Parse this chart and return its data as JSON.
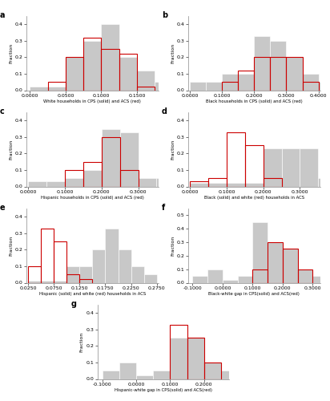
{
  "panels": [
    {
      "label": "a",
      "title": "White households in CPS (solid) and ACS (red)",
      "gray_bins": [
        0.0,
        0.025,
        0.05,
        0.075,
        0.1,
        0.125,
        0.15,
        0.175
      ],
      "gray_heights": [
        0.02,
        0.02,
        0.2,
        0.3,
        0.4,
        0.2,
        0.12,
        0.05
      ],
      "red_bins": [
        0.0,
        0.025,
        0.05,
        0.075,
        0.1,
        0.125,
        0.15,
        0.175
      ],
      "red_heights": [
        0.0,
        0.05,
        0.2,
        0.32,
        0.25,
        0.22,
        0.02,
        0.0
      ],
      "xlim": [
        -0.005,
        0.18
      ],
      "ylim": [
        0,
        0.45
      ],
      "xticks": [
        0.0,
        0.05,
        0.1,
        0.15
      ],
      "yticks": [
        0.0,
        0.1,
        0.2,
        0.3,
        0.4
      ]
    },
    {
      "label": "b",
      "title": "Black households in CPS (solid) and ACS (red)",
      "gray_bins": [
        0.0,
        0.05,
        0.1,
        0.15,
        0.2,
        0.25,
        0.3,
        0.35,
        0.4
      ],
      "gray_heights": [
        0.05,
        0.05,
        0.1,
        0.1,
        0.33,
        0.3,
        0.2,
        0.1,
        0.05
      ],
      "red_bins": [
        0.0,
        0.05,
        0.1,
        0.15,
        0.2,
        0.25,
        0.3,
        0.35,
        0.4
      ],
      "red_heights": [
        0.0,
        0.0,
        0.05,
        0.12,
        0.2,
        0.2,
        0.2,
        0.05,
        0.0
      ],
      "xlim": [
        -0.005,
        0.405
      ],
      "ylim": [
        0,
        0.45
      ],
      "xticks": [
        0.0,
        0.1,
        0.2,
        0.3,
        0.4
      ],
      "yticks": [
        0.0,
        0.1,
        0.2,
        0.3,
        0.4
      ]
    },
    {
      "label": "c",
      "title": "Hispanic households in CPS (solid) and ACS (red)",
      "gray_bins": [
        0.0,
        0.05,
        0.1,
        0.15,
        0.2,
        0.25,
        0.3,
        0.35
      ],
      "gray_heights": [
        0.03,
        0.03,
        0.05,
        0.1,
        0.35,
        0.33,
        0.05,
        0.05
      ],
      "red_bins": [
        0.0,
        0.05,
        0.1,
        0.15,
        0.2,
        0.25,
        0.3,
        0.35
      ],
      "red_heights": [
        0.0,
        0.0,
        0.1,
        0.15,
        0.3,
        0.1,
        0.0,
        0.0
      ],
      "xlim": [
        -0.005,
        0.355
      ],
      "ylim": [
        0,
        0.45
      ],
      "xticks": [
        0.0,
        0.1,
        0.2,
        0.3
      ],
      "yticks": [
        0.0,
        0.1,
        0.2,
        0.3,
        0.4
      ]
    },
    {
      "label": "d",
      "title": "Black (solid) and white (red) households in ACS",
      "gray_bins": [
        0.0,
        0.05,
        0.1,
        0.15,
        0.2,
        0.25,
        0.3,
        0.35
      ],
      "gray_heights": [
        0.02,
        0.02,
        0.02,
        0.02,
        0.23,
        0.23,
        0.23,
        0.05
      ],
      "red_bins": [
        0.0,
        0.05,
        0.1,
        0.15,
        0.2,
        0.25,
        0.3,
        0.35
      ],
      "red_heights": [
        0.03,
        0.05,
        0.33,
        0.25,
        0.05,
        0.0,
        0.0,
        0.0
      ],
      "xlim": [
        -0.005,
        0.355
      ],
      "ylim": [
        0,
        0.45
      ],
      "xticks": [
        0.0,
        0.1,
        0.2,
        0.3
      ],
      "yticks": [
        0.0,
        0.1,
        0.2,
        0.3,
        0.4
      ]
    },
    {
      "label": "e",
      "title": "Hispanic (solid) and white (red) households in ACS",
      "gray_bins": [
        0.025,
        0.05,
        0.075,
        0.1,
        0.125,
        0.15,
        0.175,
        0.2,
        0.225,
        0.25
      ],
      "gray_heights": [
        0.01,
        0.01,
        0.01,
        0.1,
        0.1,
        0.2,
        0.33,
        0.2,
        0.1,
        0.05
      ],
      "red_bins": [
        0.025,
        0.05,
        0.075,
        0.1,
        0.125,
        0.15,
        0.175,
        0.2,
        0.225,
        0.25
      ],
      "red_heights": [
        0.1,
        0.33,
        0.25,
        0.05,
        0.02,
        0.0,
        0.0,
        0.0,
        0.0,
        0.0
      ],
      "xlim": [
        0.022,
        0.278
      ],
      "ylim": [
        0,
        0.45
      ],
      "xticks": [
        0.025,
        0.075,
        0.125,
        0.175,
        0.225,
        0.275
      ],
      "xtick_labels": [
        "0.0250",
        "0.0750",
        "0.1250",
        "0.1750",
        "0.2250",
        "0.2750"
      ],
      "yticks": [
        0.0,
        0.1,
        0.2,
        0.3,
        0.4
      ]
    },
    {
      "label": "f",
      "title": "Black-white gap in CPS(solid) and ACS(red)",
      "gray_bins": [
        -0.1,
        -0.05,
        0.0,
        0.05,
        0.1,
        0.15,
        0.2,
        0.25,
        0.3
      ],
      "gray_heights": [
        0.05,
        0.1,
        0.02,
        0.05,
        0.45,
        0.3,
        0.25,
        0.1,
        0.05
      ],
      "red_bins": [
        -0.1,
        -0.05,
        0.0,
        0.05,
        0.1,
        0.15,
        0.2,
        0.25,
        0.3
      ],
      "red_heights": [
        0.0,
        0.0,
        0.0,
        0.0,
        0.1,
        0.3,
        0.25,
        0.1,
        0.0
      ],
      "xlim": [
        -0.115,
        0.325
      ],
      "ylim": [
        0,
        0.55
      ],
      "xticks": [
        -0.1,
        0.0,
        0.1,
        0.2,
        0.3
      ],
      "yticks": [
        0.0,
        0.1,
        0.2,
        0.3,
        0.4,
        0.5
      ]
    },
    {
      "label": "g",
      "title": "Hispanic-white gap in CPS(solid) and ACS(red)",
      "gray_bins": [
        -0.1,
        -0.05,
        0.0,
        0.05,
        0.1,
        0.15,
        0.2,
        0.25
      ],
      "gray_heights": [
        0.05,
        0.1,
        0.02,
        0.05,
        0.25,
        0.25,
        0.1,
        0.05
      ],
      "red_bins": [
        -0.1,
        -0.05,
        0.0,
        0.05,
        0.1,
        0.15,
        0.2,
        0.25
      ],
      "red_heights": [
        0.0,
        0.0,
        0.0,
        0.0,
        0.33,
        0.25,
        0.1,
        0.0
      ],
      "xlim": [
        -0.115,
        0.275
      ],
      "ylim": [
        0,
        0.45
      ],
      "xticks": [
        -0.1,
        0.0,
        0.1,
        0.2
      ],
      "yticks": [
        0.0,
        0.1,
        0.2,
        0.3,
        0.4
      ]
    }
  ],
  "gray_color": "#c8c8c8",
  "red_color": "#cc0000",
  "bg_color": "#ffffff",
  "tick_fontsize": 4.5,
  "label_fontsize": 4.5,
  "title_fontsize": 3.8
}
